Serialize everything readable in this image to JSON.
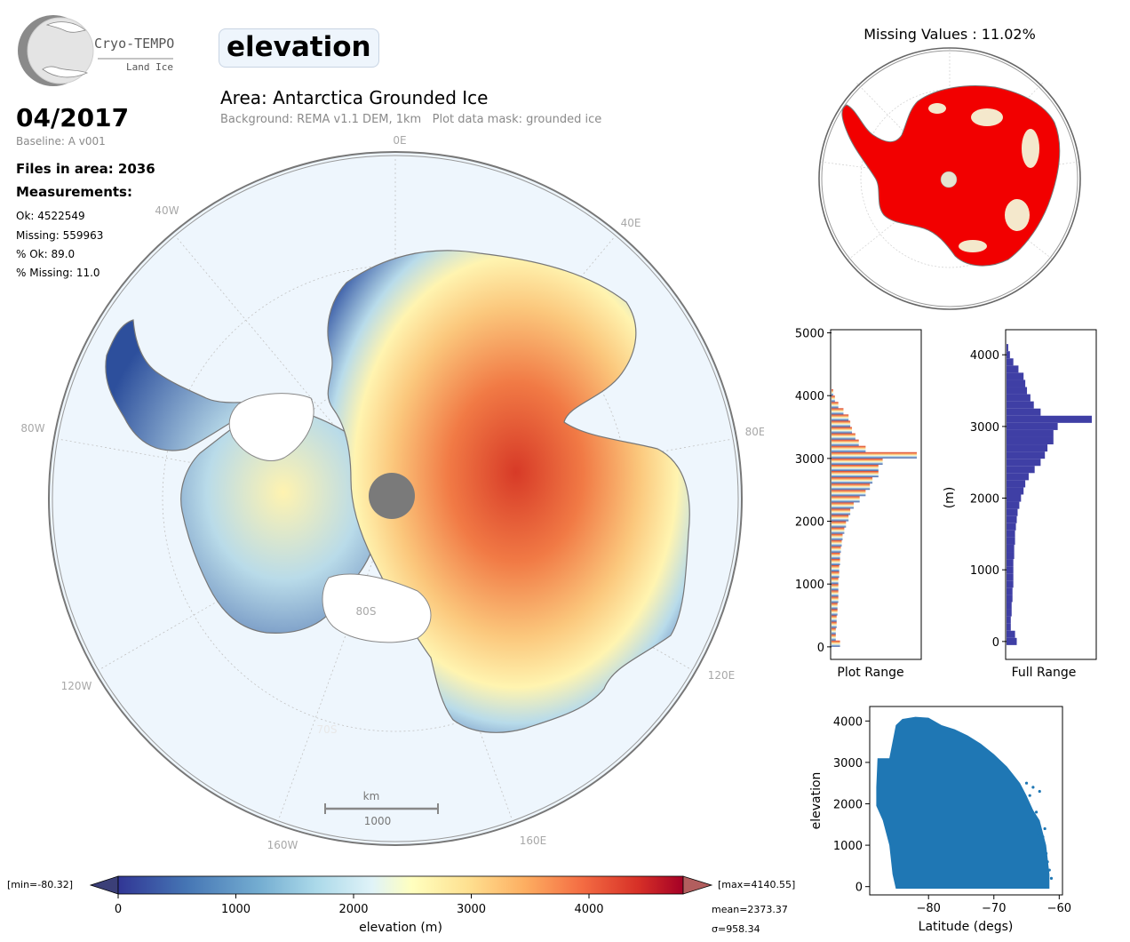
{
  "logo": {
    "name": "Cryo-TEMPO",
    "subtitle": "Land Ice"
  },
  "parameter": "elevation",
  "date": "04/2017",
  "baseline": "Baseline: A v001",
  "files_in_area": "Files in area: 2036",
  "measurements_heading": "Measurements:",
  "measurements": {
    "ok": "Ok: 4522549",
    "missing": "Missing: 559963",
    "pct_ok": "% Ok: 89.0",
    "pct_missing": "% Missing: 11.0"
  },
  "area_title": "Area: Antarctica Grounded Ice",
  "background_note": "Background: REMA v1.1 DEM, 1km   Plot data mask: grounded ice",
  "map": {
    "longitude_labels": [
      "0E",
      "40E",
      "80E",
      "120E",
      "160E",
      "160W",
      "120W",
      "80W",
      "40W"
    ],
    "latitude_labels": [
      "80S",
      "70S"
    ],
    "scale_bar": {
      "unit": "km",
      "length": "1000"
    }
  },
  "missing_map": {
    "title": "Missing Values : 11.02%"
  },
  "colors": {
    "ocean": "#eef6fd",
    "missing": "#f20000",
    "scatter": "#1f77b4",
    "full_range_hist": "#3f3fa5",
    "pole_hole": "#7a7a7a"
  },
  "colorbar": {
    "label": "elevation (m)",
    "ticks": [
      "0",
      "1000",
      "2000",
      "3000",
      "4000"
    ],
    "range": [
      0,
      4800
    ],
    "min_label": "[min=-80.32]",
    "max_label": "[max=4140.55]",
    "mean": "mean=2373.37",
    "sigma": "σ=958.34"
  },
  "chart_data": [
    {
      "type": "bar",
      "orientation": "horizontal",
      "xlabel": "Plot Range",
      "ylabel": "",
      "ylim": [
        -200,
        5050
      ],
      "yticks": [
        "0",
        "1000",
        "2000",
        "3000",
        "4000",
        "5000"
      ],
      "bins": [
        0,
        100,
        200,
        300,
        400,
        500,
        600,
        700,
        800,
        900,
        1000,
        1100,
        1200,
        1300,
        1400,
        1500,
        1600,
        1700,
        1800,
        1900,
        2000,
        2100,
        2200,
        2300,
        2400,
        2500,
        2600,
        2700,
        2800,
        2900,
        3000,
        3100,
        3200,
        3300,
        3400,
        3500,
        3600,
        3700,
        3800,
        3900,
        4000
      ],
      "values": [
        0.1,
        0.05,
        0.05,
        0.06,
        0.06,
        0.07,
        0.07,
        0.08,
        0.08,
        0.08,
        0.08,
        0.09,
        0.09,
        0.1,
        0.1,
        0.11,
        0.12,
        0.13,
        0.15,
        0.17,
        0.2,
        0.22,
        0.26,
        0.33,
        0.4,
        0.45,
        0.48,
        0.55,
        0.55,
        0.6,
        1.0,
        0.4,
        0.32,
        0.28,
        0.24,
        0.22,
        0.2,
        0.14,
        0.08,
        0.04,
        0.02
      ]
    },
    {
      "type": "bar",
      "orientation": "horizontal",
      "xlabel": "Full Range",
      "ylabel": "(m)",
      "ylim": [
        -250,
        4350
      ],
      "yticks": [
        "0",
        "1000",
        "2000",
        "3000",
        "4000"
      ],
      "bins": [
        -50,
        50,
        150,
        250,
        350,
        450,
        550,
        650,
        750,
        850,
        950,
        1050,
        1150,
        1250,
        1350,
        1450,
        1550,
        1650,
        1750,
        1850,
        1950,
        2050,
        2150,
        2250,
        2350,
        2450,
        2550,
        2650,
        2750,
        2850,
        2950,
        3050,
        3150,
        3250,
        3350,
        3450,
        3550,
        3650,
        3750,
        3850,
        3950,
        4050
      ],
      "values": [
        0.12,
        0.1,
        0.05,
        0.05,
        0.06,
        0.06,
        0.07,
        0.07,
        0.08,
        0.08,
        0.08,
        0.08,
        0.09,
        0.09,
        0.1,
        0.1,
        0.11,
        0.12,
        0.13,
        0.15,
        0.17,
        0.2,
        0.22,
        0.26,
        0.33,
        0.4,
        0.45,
        0.48,
        0.55,
        0.55,
        0.6,
        1.0,
        0.4,
        0.32,
        0.28,
        0.24,
        0.22,
        0.2,
        0.14,
        0.08,
        0.04,
        0.02
      ]
    },
    {
      "type": "scatter",
      "xlabel": "Latitude (degs)",
      "ylabel": "elevation",
      "xlim": [
        -89,
        -59.5
      ],
      "ylim": [
        -200,
        4350
      ],
      "xticks": [
        "−80",
        "−70",
        "−60"
      ],
      "yticks": [
        "0",
        "1000",
        "2000",
        "3000",
        "4000"
      ],
      "upper_envelope": [
        [
          -88,
          2400
        ],
        [
          -87.8,
          3100
        ],
        [
          -86,
          3100
        ],
        [
          -85,
          3900
        ],
        [
          -84,
          4050
        ],
        [
          -82,
          4100
        ],
        [
          -80,
          4080
        ],
        [
          -78,
          3900
        ],
        [
          -76,
          3800
        ],
        [
          -74,
          3650
        ],
        [
          -72,
          3450
        ],
        [
          -70,
          3200
        ],
        [
          -68,
          2900
        ],
        [
          -66,
          2500
        ],
        [
          -65,
          2200
        ],
        [
          -64,
          1850
        ],
        [
          -63,
          1600
        ],
        [
          -62,
          1000
        ],
        [
          -61.5,
          300
        ]
      ],
      "lower_envelope": [
        [
          -88,
          1950
        ],
        [
          -87,
          1600
        ],
        [
          -86,
          1000
        ],
        [
          -85.5,
          300
        ],
        [
          -85,
          -50
        ],
        [
          -61.5,
          -50
        ]
      ],
      "outliers": [
        [
          -65,
          2500
        ],
        [
          -64.5,
          2200
        ],
        [
          -64,
          2400
        ],
        [
          -63.5,
          1800
        ],
        [
          -63,
          2300
        ],
        [
          -62.5,
          1200
        ],
        [
          -62,
          800
        ],
        [
          -61.8,
          600
        ],
        [
          -61.5,
          400
        ],
        [
          -61.2,
          200
        ],
        [
          -62.2,
          1400
        ],
        [
          -63.2,
          1300
        ]
      ]
    }
  ]
}
